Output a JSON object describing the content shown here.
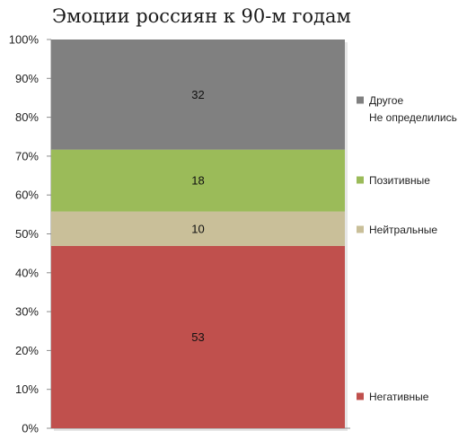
{
  "chart_data": {
    "type": "bar",
    "stacked": true,
    "normalized": true,
    "title": "Эмоции россиян к 90-м годам",
    "categories": [
      ""
    ],
    "series": [
      {
        "name": "Негативные",
        "values": [
          53
        ],
        "color": "#c0504d"
      },
      {
        "name": "Нейтральные",
        "values": [
          10
        ],
        "color": "#c9bf99"
      },
      {
        "name": "Позитивные",
        "values": [
          18
        ],
        "color": "#9bbb59"
      },
      {
        "name": "Другое\nНе определились",
        "values": [
          32
        ],
        "color": "#808080"
      }
    ],
    "data_labels": [
      "53",
      "10",
      "18",
      "32"
    ],
    "ylim": [
      0,
      100
    ],
    "yticks": [
      "0%",
      "10%",
      "20%",
      "30%",
      "40%",
      "50%",
      "60%",
      "70%",
      "80%",
      "90%",
      "100%"
    ],
    "grid": false,
    "legend_position": "right"
  }
}
